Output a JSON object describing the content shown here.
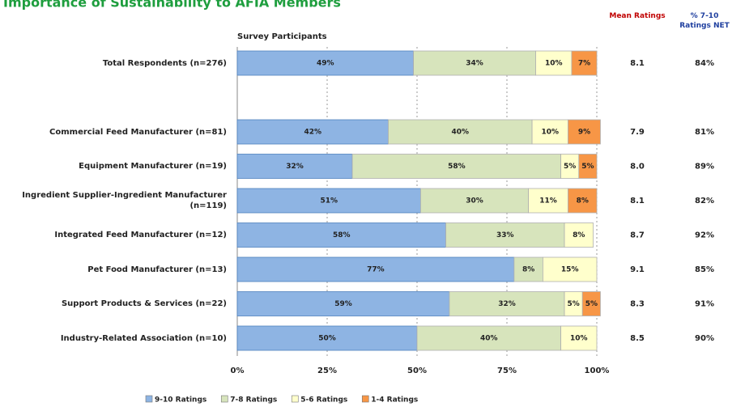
{
  "chart_data": {
    "type": "stacked_bar_horizontal",
    "title": "Importance of Sustainability to AFIA Members",
    "subtitle": "Survey Participants",
    "categories": [
      "Total Respondents (n=276)",
      null,
      "Commercial Feed Manufacturer (n=81)",
      "Equipment Manufacturer (n=19)",
      "Ingredient Supplier-Ingredient Manufacturer (n=119)",
      "Integrated Feed Manufacturer (n=12)",
      "Pet Food Manufacturer  (n=13)",
      "Support Products & Services (n=22)",
      "Industry-Related Association (n=10)"
    ],
    "series": [
      {
        "name": "9-10 Ratings",
        "color": "#8eb4e3",
        "values": [
          49,
          null,
          42,
          32,
          51,
          58,
          77,
          59,
          50
        ],
        "value_labels": [
          "49%",
          null,
          "42%",
          "32%",
          "51%",
          "58%",
          "77%",
          "59%",
          "50%"
        ]
      },
      {
        "name": "7-8 Ratings",
        "color": "#d7e4bc",
        "values": [
          34,
          null,
          40,
          58,
          30,
          33,
          8,
          32,
          40
        ],
        "value_labels": [
          "34%",
          null,
          "40%",
          "58%",
          "30%",
          "33%",
          "8%",
          "32%",
          "40%"
        ]
      },
      {
        "name": "5-6 Ratings",
        "color": "#ffffcc",
        "values": [
          10,
          null,
          10,
          5,
          11,
          8,
          15,
          5,
          10
        ],
        "value_labels": [
          "10%",
          null,
          "10%",
          "5%",
          "11%",
          "8%",
          "15%",
          "5%",
          "10%"
        ]
      },
      {
        "name": "1-4 Ratings",
        "color": "#f79646",
        "values": [
          7,
          null,
          9,
          5,
          8,
          null,
          null,
          5,
          null
        ],
        "value_labels": [
          "7%",
          null,
          "9%",
          "5%",
          "8%",
          null,
          null,
          "5%",
          null
        ]
      }
    ],
    "mean_ratings": {
      "title": "Mean Ratings",
      "values": [
        8.1,
        null,
        7.9,
        8.0,
        8.1,
        8.7,
        9.1,
        8.3,
        8.5
      ],
      "value_labels": [
        "8.1",
        null,
        "7.9",
        "8.0",
        "8.1",
        "8.7",
        "9.1",
        "8.3",
        "8.5"
      ]
    },
    "net_ratings": {
      "title": "% 7-10 Ratings NET",
      "values": [
        84,
        null,
        81,
        89,
        82,
        92,
        85,
        91,
        90
      ],
      "value_labels": [
        "84%",
        null,
        "81%",
        "89%",
        "82%",
        "92%",
        "85%",
        "91%",
        "90%"
      ]
    },
    "xlim": [
      0,
      100
    ],
    "xticks": [
      {
        "value": 0,
        "label": "0%"
      },
      {
        "value": 25,
        "label": "25%"
      },
      {
        "value": 50,
        "label": "50%"
      },
      {
        "value": 75,
        "label": "75%"
      },
      {
        "value": 100,
        "label": "100%"
      }
    ],
    "grid": true,
    "legend": "bottom"
  }
}
